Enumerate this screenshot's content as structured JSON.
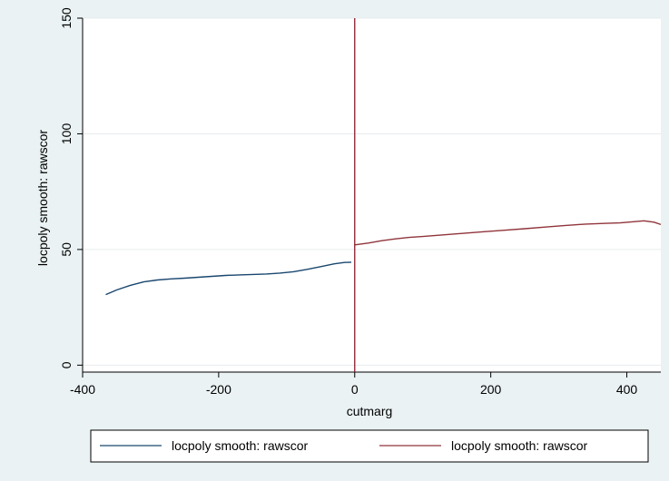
{
  "chart_data": {
    "type": "line",
    "xlabel": "cutmarg",
    "ylabel": "locpoly smooth: rawscor",
    "xlim": [
      -400,
      450
    ],
    "ylim": [
      -3,
      150
    ],
    "xticks": [
      -400,
      -200,
      0,
      200,
      400
    ],
    "xtick_labels": [
      "-400",
      "-200",
      "0",
      "200",
      "400"
    ],
    "yticks": [
      0,
      50,
      100,
      150
    ],
    "ytick_labels": [
      "0",
      "50",
      "100",
      "150"
    ],
    "grid": true,
    "cutoff_x": 0,
    "cutoff_color": "#8b1a2c",
    "legend_position": "bottom",
    "series": [
      {
        "name": "locpoly smooth: rawscor",
        "color": "#1a476f",
        "x": [
          -366,
          -350,
          -330,
          -310,
          -290,
          -270,
          -250,
          -230,
          -210,
          -190,
          -170,
          -150,
          -130,
          -110,
          -90,
          -70,
          -50,
          -30,
          -15,
          -5
        ],
        "y": [
          30.5,
          32.5,
          34.5,
          36.0,
          36.8,
          37.3,
          37.6,
          38.0,
          38.4,
          38.8,
          39.0,
          39.2,
          39.4,
          39.8,
          40.4,
          41.4,
          42.6,
          43.8,
          44.4,
          44.5
        ]
      },
      {
        "name": "locpoly smooth: rawscor",
        "color": "#90353b",
        "x": [
          0,
          20,
          40,
          60,
          80,
          100,
          130,
          160,
          190,
          220,
          250,
          280,
          310,
          340,
          370,
          390,
          410,
          425,
          440,
          450
        ],
        "y": [
          52.0,
          52.8,
          53.8,
          54.6,
          55.2,
          55.6,
          56.3,
          57.0,
          57.7,
          58.3,
          59.0,
          59.7,
          60.4,
          61.0,
          61.3,
          61.5,
          62.0,
          62.4,
          61.8,
          60.8
        ]
      }
    ]
  }
}
